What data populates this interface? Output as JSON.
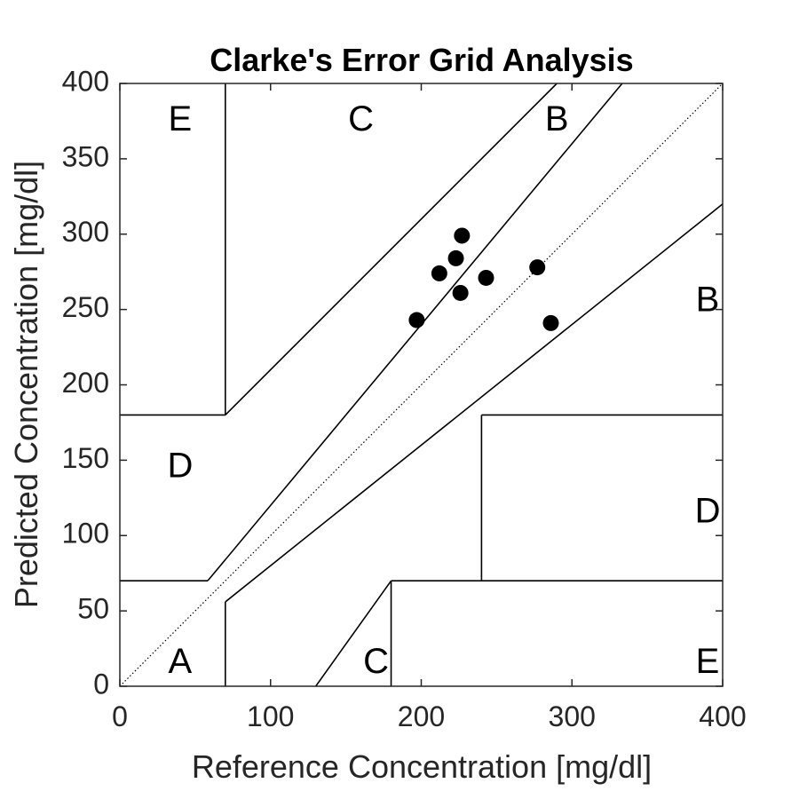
{
  "chart_data": {
    "type": "scatter",
    "title": "Clarke's Error Grid Analysis",
    "xlabel": "Reference Concentration [mg/dl]",
    "ylabel": "Predicted Concentration [mg/dl]",
    "xlim": [
      0,
      400
    ],
    "ylim": [
      0,
      400
    ],
    "xticks": [
      0,
      100,
      200,
      300,
      400
    ],
    "yticks": [
      0,
      50,
      100,
      150,
      200,
      250,
      300,
      350,
      400
    ],
    "grid": false,
    "legend": "none",
    "diagonal": {
      "style": "dotted",
      "from": [
        0,
        0
      ],
      "to": [
        400,
        400
      ]
    },
    "zone_lines": [
      [
        [
          0,
          70
        ],
        [
          58.33,
          70
        ]
      ],
      [
        [
          58.33,
          70
        ],
        [
          70,
          84
        ]
      ],
      [
        [
          70,
          84
        ],
        [
          333.33,
          400
        ]
      ],
      [
        [
          70,
          56
        ],
        [
          400,
          320
        ]
      ],
      [
        [
          70,
          0
        ],
        [
          70,
          56
        ]
      ],
      [
        [
          70,
          180
        ],
        [
          70,
          400
        ]
      ],
      [
        [
          0,
          180
        ],
        [
          70,
          180
        ]
      ],
      [
        [
          70,
          180
        ],
        [
          290,
          400
        ]
      ],
      [
        [
          130,
          0
        ],
        [
          180,
          70
        ]
      ],
      [
        [
          180,
          0
        ],
        [
          180,
          70
        ]
      ],
      [
        [
          180,
          70
        ],
        [
          400,
          70
        ]
      ],
      [
        [
          240,
          70
        ],
        [
          240,
          180
        ]
      ],
      [
        [
          240,
          180
        ],
        [
          400,
          180
        ]
      ]
    ],
    "zone_labels": [
      {
        "text": "A",
        "x": 40,
        "y": 15
      },
      {
        "text": "C",
        "x": 170,
        "y": 15
      },
      {
        "text": "E",
        "x": 390,
        "y": 15
      },
      {
        "text": "D",
        "x": 40,
        "y": 145
      },
      {
        "text": "D",
        "x": 390,
        "y": 115
      },
      {
        "text": "B",
        "x": 390,
        "y": 255
      },
      {
        "text": "E",
        "x": 40,
        "y": 375
      },
      {
        "text": "C",
        "x": 160,
        "y": 375
      },
      {
        "text": "B",
        "x": 290,
        "y": 375
      }
    ],
    "points": [
      {
        "x": 197,
        "y": 243
      },
      {
        "x": 212,
        "y": 274
      },
      {
        "x": 223,
        "y": 284
      },
      {
        "x": 226,
        "y": 261
      },
      {
        "x": 227,
        "y": 299
      },
      {
        "x": 243,
        "y": 271
      },
      {
        "x": 277,
        "y": 278
      },
      {
        "x": 286,
        "y": 241
      }
    ],
    "colors": {
      "axis": "#262626",
      "lines": "#000000",
      "points": "#000000"
    }
  }
}
